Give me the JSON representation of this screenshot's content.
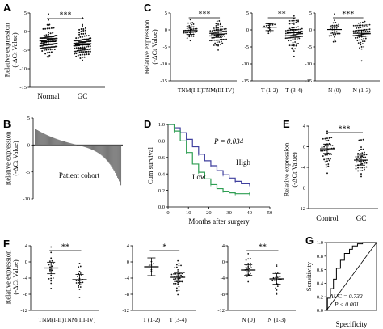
{
  "panels": {
    "A": {
      "label": "A",
      "ylabel": [
        "Relative expression",
        "(-ΔCt Value)"
      ],
      "yticks": [
        5,
        0,
        -5,
        -10,
        -15
      ],
      "categories": [
        "Normal",
        "GC"
      ],
      "sig": "***"
    },
    "C": {
      "label": "C",
      "ylabel": [
        "Relative expression",
        "(-ΔCt Value)"
      ],
      "yticks": [
        5,
        0,
        -5,
        -10,
        -15
      ],
      "groups": [
        {
          "categories": [
            "TNM(I-II)",
            "TNM(III-IV)"
          ],
          "sig": "***"
        },
        {
          "categories": [
            "T (1-2)",
            "T (3-4)"
          ],
          "sig": "**"
        },
        {
          "categories": [
            "N (0)",
            "N (1-3)"
          ],
          "sig": "***"
        }
      ]
    },
    "B": {
      "label": "B",
      "ylabel": [
        "Relative expression",
        "(-ΔCt Value)"
      ],
      "yticks": [
        5,
        0,
        -5,
        -10
      ],
      "xlabel": "Patient cohort"
    },
    "D": {
      "label": "D",
      "ylabel": "Cum survival",
      "xlabel": "Months after surgery",
      "yticks": [
        "1.0",
        "0.8",
        "0.6",
        "0.4",
        "0.2",
        "0.0"
      ],
      "xticks": [
        "0",
        "10",
        "20",
        "30",
        "40",
        "50"
      ],
      "pvalue": "P = 0.034",
      "high": "High",
      "low": "Low"
    },
    "E": {
      "label": "E",
      "ylabel": [
        "Relative expression",
        "(-ΔCt Value)"
      ],
      "yticks": [
        4,
        0,
        -4,
        -8,
        -12
      ],
      "categories": [
        "Control",
        "GC"
      ],
      "sig": "***"
    },
    "F": {
      "label": "F",
      "ylabel": [
        "Relative expression",
        "(-ΔCt Value)"
      ],
      "yticks": [
        4,
        0,
        -4,
        -8,
        -12
      ],
      "groups": [
        {
          "categories": [
            "TNM(I-II)",
            "TNM(III-IV)"
          ],
          "sig": "**"
        },
        {
          "categories": [
            "T (1-2)",
            "T (3-4)"
          ],
          "sig": "*"
        },
        {
          "categories": [
            "N (0)",
            "N (1-3)"
          ],
          "sig": "**"
        }
      ]
    },
    "G": {
      "label": "G",
      "ylabel": "Sensitivity",
      "xlabel": "Specificity",
      "yticks": [
        "1.0",
        "0.8",
        "0.6",
        "0.4",
        "0.2",
        "0.0"
      ],
      "xticks": [
        "0.0",
        "0.2",
        "0.4",
        "0.6",
        "0.8",
        "1.0"
      ],
      "auc": "AUC = 0.732",
      "pvalue": "P < 0.001"
    }
  },
  "chart_data": [
    {
      "type": "scatter",
      "panel": "A",
      "categories": [
        "Normal",
        "GC"
      ],
      "ylim": [
        -15,
        5
      ],
      "series": [
        {
          "mean": -2.7,
          "sd": 2.0,
          "n": 110
        },
        {
          "mean": -3.6,
          "sd": 2.2,
          "n": 110
        }
      ]
    },
    {
      "type": "scatter",
      "panel": "C",
      "ylim": [
        -15,
        5
      ],
      "groups": [
        {
          "categories": [
            "TNM(I-II)",
            "TNM(III-IV)"
          ],
          "series": [
            {
              "mean": -0.2,
              "sd": 1.8,
              "n": 38
            },
            {
              "mean": -1.2,
              "sd": 2.1,
              "n": 75
            }
          ]
        },
        {
          "categories": [
            "T (1-2)",
            "T (3-4)"
          ],
          "series": [
            {
              "mean": 0.8,
              "sd": 0.9,
              "n": 14
            },
            {
              "mean": -0.8,
              "sd": 2.0,
              "n": 90
            }
          ]
        },
        {
          "categories": [
            "N (0)",
            "N (1-3)"
          ],
          "series": [
            {
              "mean": 0.1,
              "sd": 1.5,
              "n": 30
            },
            {
              "mean": -1.0,
              "sd": 1.9,
              "n": 80
            }
          ]
        }
      ]
    },
    {
      "type": "bar",
      "panel": "B",
      "ylim": [
        -10,
        5
      ],
      "n": 110,
      "max": 3.0,
      "min": -7.5
    },
    {
      "type": "line",
      "panel": "D",
      "xlim": [
        0,
        50
      ],
      "ylim": [
        0,
        1
      ],
      "series": [
        {
          "name": "High",
          "x": [
            0,
            3,
            6,
            9,
            12,
            15,
            18,
            21,
            24,
            27,
            30,
            33,
            36,
            40
          ],
          "y": [
            1.0,
            0.96,
            0.9,
            0.82,
            0.73,
            0.64,
            0.56,
            0.5,
            0.44,
            0.39,
            0.35,
            0.31,
            0.28,
            0.27
          ]
        },
        {
          "name": "Low",
          "x": [
            0,
            3,
            6,
            9,
            12,
            15,
            18,
            21,
            24,
            27,
            30,
            33,
            36,
            40
          ],
          "y": [
            1.0,
            0.92,
            0.8,
            0.66,
            0.52,
            0.42,
            0.34,
            0.27,
            0.22,
            0.19,
            0.17,
            0.16,
            0.16,
            0.16
          ]
        }
      ]
    },
    {
      "type": "scatter",
      "panel": "E",
      "categories": [
        "Control",
        "GC"
      ],
      "ylim": [
        -12,
        4
      ],
      "series": [
        {
          "mean": -0.4,
          "sd": 1.8,
          "n": 45
        },
        {
          "mean": -2.6,
          "sd": 2.0,
          "n": 45
        }
      ]
    },
    {
      "type": "scatter",
      "panel": "F",
      "ylim": [
        -12,
        4
      ],
      "groups": [
        {
          "categories": [
            "TNM(I-II)",
            "TNM(III-IV)"
          ],
          "series": [
            {
              "mean": -1.5,
              "sd": 2.2,
              "n": 22
            },
            {
              "mean": -4.4,
              "sd": 2.0,
              "n": 24
            }
          ]
        },
        {
          "categories": [
            "T (1-2)",
            "T (3-4)"
          ],
          "series": [
            {
              "mean": -1.2,
              "sd": 2.0,
              "n": 6
            },
            {
              "mean": -3.8,
              "sd": 1.8,
              "n": 38
            }
          ]
        },
        {
          "categories": [
            "N (0)",
            "N (1-3)"
          ],
          "series": [
            {
              "mean": -2.0,
              "sd": 2.0,
              "n": 22
            },
            {
              "mean": -4.2,
              "sd": 2.0,
              "n": 22
            }
          ]
        }
      ]
    },
    {
      "type": "line",
      "panel": "G",
      "xlim": [
        0,
        1
      ],
      "ylim": [
        0,
        1
      ],
      "series": [
        {
          "name": "ROC",
          "x": [
            0,
            0.02,
            0.02,
            0.08,
            0.08,
            0.14,
            0.14,
            0.2,
            0.2,
            0.28,
            0.28,
            0.36,
            0.36,
            0.46,
            0.46,
            0.52,
            0.52,
            0.62,
            0.62,
            0.72,
            0.72,
            1.0
          ],
          "y": [
            0,
            0,
            0.18,
            0.18,
            0.32,
            0.32,
            0.46,
            0.46,
            0.62,
            0.62,
            0.74,
            0.74,
            0.84,
            0.84,
            0.9,
            0.9,
            0.95,
            0.95,
            0.98,
            0.98,
            1.0,
            1.0
          ]
        }
      ]
    }
  ]
}
